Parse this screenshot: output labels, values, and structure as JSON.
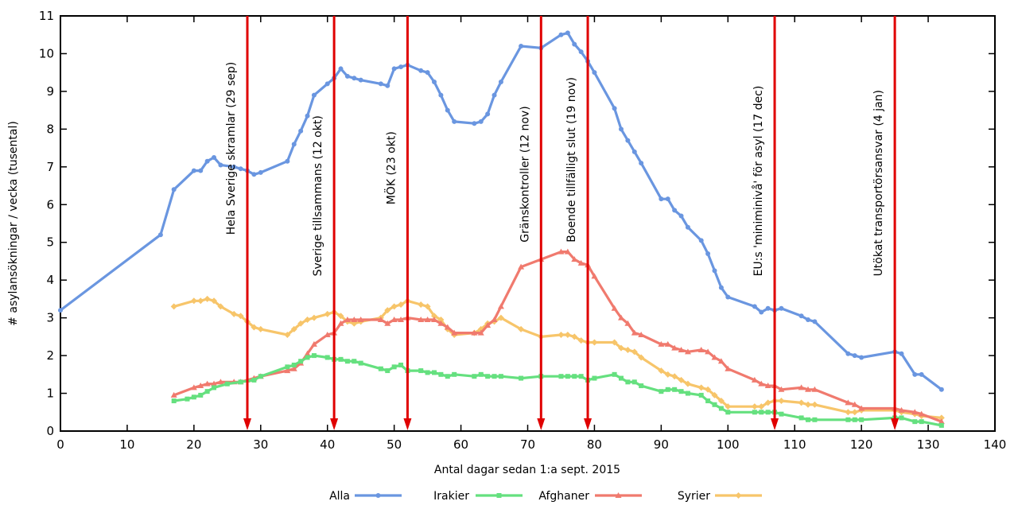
{
  "chart_data": {
    "type": "line",
    "title": "",
    "xlabel": "Antal dagar sedan 1:a sept. 2015",
    "ylabel": "# asylansökningar / vecka (tusental)",
    "xlim": [
      0,
      140
    ],
    "ylim": [
      0,
      11
    ],
    "xticks": [
      0,
      10,
      20,
      30,
      40,
      50,
      60,
      70,
      80,
      90,
      100,
      110,
      120,
      130,
      140
    ],
    "yticks": [
      0,
      1,
      2,
      3,
      4,
      5,
      6,
      7,
      8,
      9,
      10,
      11
    ],
    "grid": false,
    "legend_position": "bottom",
    "series": [
      {
        "name": "Alla",
        "color": "#6a96e0",
        "marker": "circle",
        "points": [
          [
            0,
            3.2
          ],
          [
            15,
            5.2
          ],
          [
            17,
            6.4
          ],
          [
            20,
            6.9
          ],
          [
            21,
            6.9
          ],
          [
            22,
            7.15
          ],
          [
            23,
            7.25
          ],
          [
            24,
            7.05
          ],
          [
            26,
            7.0
          ],
          [
            27,
            6.95
          ],
          [
            28,
            6.9
          ],
          [
            29,
            6.8
          ],
          [
            30,
            6.85
          ],
          [
            34,
            7.15
          ],
          [
            35,
            7.6
          ],
          [
            36,
            7.95
          ],
          [
            37,
            8.35
          ],
          [
            38,
            8.9
          ],
          [
            40,
            9.2
          ],
          [
            41,
            9.35
          ],
          [
            42,
            9.6
          ],
          [
            43,
            9.4
          ],
          [
            44,
            9.35
          ],
          [
            45,
            9.3
          ],
          [
            48,
            9.2
          ],
          [
            49,
            9.15
          ],
          [
            50,
            9.6
          ],
          [
            51,
            9.65
          ],
          [
            52,
            9.7
          ],
          [
            54,
            9.55
          ],
          [
            55,
            9.5
          ],
          [
            56,
            9.25
          ],
          [
            57,
            8.9
          ],
          [
            58,
            8.5
          ],
          [
            59,
            8.2
          ],
          [
            62,
            8.15
          ],
          [
            63,
            8.2
          ],
          [
            64,
            8.4
          ],
          [
            65,
            8.9
          ],
          [
            66,
            9.25
          ],
          [
            69,
            10.2
          ],
          [
            72,
            10.15
          ],
          [
            75,
            10.5
          ],
          [
            76,
            10.55
          ],
          [
            77,
            10.25
          ],
          [
            78,
            10.05
          ],
          [
            79,
            9.8
          ],
          [
            80,
            9.5
          ],
          [
            83,
            8.55
          ],
          [
            84,
            8.0
          ],
          [
            85,
            7.7
          ],
          [
            86,
            7.4
          ],
          [
            87,
            7.1
          ],
          [
            90,
            6.15
          ],
          [
            91,
            6.15
          ],
          [
            92,
            5.85
          ],
          [
            93,
            5.7
          ],
          [
            94,
            5.4
          ],
          [
            96,
            5.05
          ],
          [
            97,
            4.7
          ],
          [
            98,
            4.25
          ],
          [
            99,
            3.8
          ],
          [
            100,
            3.55
          ],
          [
            104,
            3.3
          ],
          [
            105,
            3.15
          ],
          [
            106,
            3.25
          ],
          [
            107,
            3.2
          ],
          [
            108,
            3.25
          ],
          [
            111,
            3.05
          ],
          [
            112,
            2.95
          ],
          [
            113,
            2.9
          ],
          [
            118,
            2.05
          ],
          [
            119,
            2.0
          ],
          [
            120,
            1.95
          ],
          [
            125,
            2.1
          ],
          [
            126,
            2.05
          ],
          [
            128,
            1.5
          ],
          [
            129,
            1.5
          ],
          [
            132,
            1.1
          ]
        ]
      },
      {
        "name": "Irakier",
        "color": "#65e07f",
        "marker": "square",
        "points": [
          [
            17,
            0.8
          ],
          [
            19,
            0.85
          ],
          [
            20,
            0.9
          ],
          [
            21,
            0.95
          ],
          [
            22,
            1.05
          ],
          [
            23,
            1.15
          ],
          [
            25,
            1.25
          ],
          [
            27,
            1.3
          ],
          [
            29,
            1.35
          ],
          [
            30,
            1.45
          ],
          [
            34,
            1.7
          ],
          [
            35,
            1.75
          ],
          [
            36,
            1.85
          ],
          [
            37,
            1.95
          ],
          [
            38,
            2.0
          ],
          [
            40,
            1.95
          ],
          [
            41,
            1.9
          ],
          [
            42,
            1.9
          ],
          [
            43,
            1.85
          ],
          [
            44,
            1.85
          ],
          [
            45,
            1.8
          ],
          [
            48,
            1.65
          ],
          [
            49,
            1.6
          ],
          [
            50,
            1.7
          ],
          [
            51,
            1.75
          ],
          [
            52,
            1.6
          ],
          [
            54,
            1.6
          ],
          [
            55,
            1.55
          ],
          [
            56,
            1.55
          ],
          [
            57,
            1.5
          ],
          [
            58,
            1.45
          ],
          [
            59,
            1.5
          ],
          [
            62,
            1.45
          ],
          [
            63,
            1.5
          ],
          [
            64,
            1.45
          ],
          [
            65,
            1.45
          ],
          [
            66,
            1.45
          ],
          [
            69,
            1.4
          ],
          [
            72,
            1.45
          ],
          [
            75,
            1.45
          ],
          [
            76,
            1.45
          ],
          [
            77,
            1.45
          ],
          [
            78,
            1.45
          ],
          [
            79,
            1.35
          ],
          [
            80,
            1.4
          ],
          [
            83,
            1.5
          ],
          [
            84,
            1.4
          ],
          [
            85,
            1.3
          ],
          [
            86,
            1.3
          ],
          [
            87,
            1.2
          ],
          [
            90,
            1.05
          ],
          [
            91,
            1.1
          ],
          [
            92,
            1.1
          ],
          [
            93,
            1.05
          ],
          [
            94,
            1.0
          ],
          [
            96,
            0.95
          ],
          [
            97,
            0.8
          ],
          [
            98,
            0.7
          ],
          [
            99,
            0.6
          ],
          [
            100,
            0.5
          ],
          [
            104,
            0.5
          ],
          [
            105,
            0.5
          ],
          [
            106,
            0.5
          ],
          [
            107,
            0.5
          ],
          [
            108,
            0.45
          ],
          [
            111,
            0.35
          ],
          [
            112,
            0.3
          ],
          [
            113,
            0.3
          ],
          [
            118,
            0.3
          ],
          [
            119,
            0.3
          ],
          [
            120,
            0.3
          ],
          [
            125,
            0.35
          ],
          [
            126,
            0.35
          ],
          [
            128,
            0.25
          ],
          [
            129,
            0.25
          ],
          [
            132,
            0.15
          ]
        ]
      },
      {
        "name": "Afghaner",
        "color": "#f07a6e",
        "marker": "triangle",
        "points": [
          [
            17,
            0.95
          ],
          [
            20,
            1.15
          ],
          [
            21,
            1.2
          ],
          [
            22,
            1.25
          ],
          [
            23,
            1.25
          ],
          [
            24,
            1.3
          ],
          [
            26,
            1.3
          ],
          [
            27,
            1.3
          ],
          [
            28,
            1.35
          ],
          [
            29,
            1.4
          ],
          [
            30,
            1.45
          ],
          [
            34,
            1.6
          ],
          [
            35,
            1.65
          ],
          [
            36,
            1.8
          ],
          [
            37,
            2.05
          ],
          [
            38,
            2.3
          ],
          [
            40,
            2.55
          ],
          [
            41,
            2.6
          ],
          [
            42,
            2.85
          ],
          [
            43,
            2.95
          ],
          [
            44,
            2.95
          ],
          [
            45,
            2.95
          ],
          [
            48,
            2.95
          ],
          [
            49,
            2.85
          ],
          [
            50,
            2.95
          ],
          [
            51,
            2.95
          ],
          [
            52,
            3.0
          ],
          [
            54,
            2.95
          ],
          [
            55,
            2.95
          ],
          [
            56,
            2.95
          ],
          [
            57,
            2.85
          ],
          [
            58,
            2.75
          ],
          [
            59,
            2.6
          ],
          [
            62,
            2.6
          ],
          [
            63,
            2.6
          ],
          [
            64,
            2.8
          ],
          [
            65,
            2.95
          ],
          [
            66,
            3.3
          ],
          [
            69,
            4.35
          ],
          [
            72,
            4.55
          ],
          [
            75,
            4.75
          ],
          [
            76,
            4.75
          ],
          [
            77,
            4.55
          ],
          [
            78,
            4.45
          ],
          [
            79,
            4.4
          ],
          [
            80,
            4.1
          ],
          [
            83,
            3.25
          ],
          [
            84,
            3.0
          ],
          [
            85,
            2.85
          ],
          [
            86,
            2.6
          ],
          [
            87,
            2.55
          ],
          [
            90,
            2.3
          ],
          [
            91,
            2.3
          ],
          [
            92,
            2.2
          ],
          [
            93,
            2.15
          ],
          [
            94,
            2.1
          ],
          [
            96,
            2.15
          ],
          [
            97,
            2.1
          ],
          [
            98,
            1.95
          ],
          [
            99,
            1.85
          ],
          [
            100,
            1.65
          ],
          [
            104,
            1.35
          ],
          [
            105,
            1.25
          ],
          [
            106,
            1.2
          ],
          [
            107,
            1.2
          ],
          [
            108,
            1.1
          ],
          [
            111,
            1.15
          ],
          [
            112,
            1.1
          ],
          [
            113,
            1.1
          ],
          [
            118,
            0.75
          ],
          [
            119,
            0.7
          ],
          [
            120,
            0.6
          ],
          [
            125,
            0.6
          ],
          [
            126,
            0.55
          ],
          [
            128,
            0.5
          ],
          [
            129,
            0.45
          ],
          [
            132,
            0.25
          ]
        ]
      },
      {
        "name": "Syrier",
        "color": "#f7c56a",
        "marker": "diamond",
        "points": [
          [
            17,
            3.3
          ],
          [
            20,
            3.45
          ],
          [
            21,
            3.45
          ],
          [
            22,
            3.5
          ],
          [
            23,
            3.45
          ],
          [
            24,
            3.3
          ],
          [
            26,
            3.1
          ],
          [
            27,
            3.05
          ],
          [
            28,
            2.9
          ],
          [
            29,
            2.75
          ],
          [
            30,
            2.7
          ],
          [
            34,
            2.55
          ],
          [
            35,
            2.7
          ],
          [
            36,
            2.85
          ],
          [
            37,
            2.95
          ],
          [
            38,
            3.0
          ],
          [
            40,
            3.1
          ],
          [
            41,
            3.15
          ],
          [
            42,
            3.05
          ],
          [
            43,
            2.9
          ],
          [
            44,
            2.85
          ],
          [
            45,
            2.9
          ],
          [
            48,
            3.0
          ],
          [
            49,
            3.2
          ],
          [
            50,
            3.3
          ],
          [
            51,
            3.35
          ],
          [
            52,
            3.45
          ],
          [
            54,
            3.35
          ],
          [
            55,
            3.3
          ],
          [
            56,
            3.05
          ],
          [
            57,
            2.95
          ],
          [
            58,
            2.7
          ],
          [
            59,
            2.55
          ],
          [
            62,
            2.6
          ],
          [
            63,
            2.7
          ],
          [
            64,
            2.85
          ],
          [
            65,
            2.9
          ],
          [
            66,
            3.0
          ],
          [
            69,
            2.7
          ],
          [
            72,
            2.5
          ],
          [
            75,
            2.55
          ],
          [
            76,
            2.55
          ],
          [
            77,
            2.5
          ],
          [
            78,
            2.4
          ],
          [
            79,
            2.35
          ],
          [
            80,
            2.35
          ],
          [
            83,
            2.35
          ],
          [
            84,
            2.2
          ],
          [
            85,
            2.15
          ],
          [
            86,
            2.1
          ],
          [
            87,
            1.95
          ],
          [
            90,
            1.6
          ],
          [
            91,
            1.5
          ],
          [
            92,
            1.45
          ],
          [
            93,
            1.35
          ],
          [
            94,
            1.25
          ],
          [
            96,
            1.15
          ],
          [
            97,
            1.1
          ],
          [
            98,
            0.95
          ],
          [
            99,
            0.8
          ],
          [
            100,
            0.65
          ],
          [
            104,
            0.65
          ],
          [
            105,
            0.65
          ],
          [
            106,
            0.75
          ],
          [
            107,
            0.8
          ],
          [
            108,
            0.8
          ],
          [
            111,
            0.75
          ],
          [
            112,
            0.7
          ],
          [
            113,
            0.7
          ],
          [
            118,
            0.5
          ],
          [
            119,
            0.5
          ],
          [
            120,
            0.55
          ],
          [
            125,
            0.55
          ],
          [
            126,
            0.5
          ],
          [
            128,
            0.45
          ],
          [
            129,
            0.4
          ],
          [
            132,
            0.35
          ]
        ]
      }
    ],
    "events": [
      {
        "day": 28,
        "label": "Hela Sverige skramlar (29 sep)",
        "label_y": 5.2
      },
      {
        "day": 41,
        "label": "Sverige tillsammans (12 okt)",
        "label_y": 4.1
      },
      {
        "day": 52,
        "label": "MÖK (23 okt)",
        "label_y": 6.0
      },
      {
        "day": 72,
        "label": "Gränskontroller (12 nov)",
        "label_y": 5.0
      },
      {
        "day": 79,
        "label": "Boende tillfälligt slut (19 nov)",
        "label_y": 5.0
      },
      {
        "day": 107,
        "label": "EU:s 'miniminivå' för asyl (17 dec)",
        "label_y": 4.1
      },
      {
        "day": 125,
        "label": "Utökat transportörsansvar (4 jan)",
        "label_y": 4.1
      }
    ]
  }
}
